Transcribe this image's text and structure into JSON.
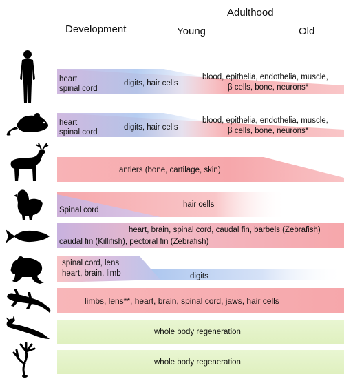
{
  "header": {
    "adulthood": "Adulthood",
    "development": "Development",
    "young": "Young",
    "old": "Old"
  },
  "rows": {
    "human": {
      "icon": "human-silhouette",
      "dev_line1": "heart",
      "dev_line2": "spinal cord",
      "mid": "digits, hair cells",
      "adult_line1": "blood, epithelia, endothelia, muscle,",
      "adult_line2": "β cells, bone, neurons*"
    },
    "mouse": {
      "icon": "mouse-silhouette",
      "dev_line1": "heart",
      "dev_line2": "spinal cord",
      "mid": "digits, hair cells",
      "adult_line1": "blood, epithelia, endothelia, muscle,",
      "adult_line2": "β cells, bone, neurons*"
    },
    "deer": {
      "icon": "deer-silhouette",
      "adult": "antlers (bone, cartilage, skin)"
    },
    "chicken": {
      "icon": "chicken-silhouette",
      "dev": "Spinal cord",
      "adult": "hair cells"
    },
    "fish": {
      "icon": "fish-silhouette",
      "line1": "heart, brain, spinal cord, caudal fin, barbels (Zebrafish)",
      "line2": "caudal fin (Killifish), pectoral fin (Zebrafish)"
    },
    "frog": {
      "icon": "frog-silhouette",
      "dev_line1": "spinal cord, lens",
      "dev_line2": "heart, brain, limb",
      "adult": "digits"
    },
    "salamander": {
      "icon": "salamander-silhouette",
      "text": "limbs, lens**, heart, brain, spinal cord, jaws, hair cells"
    },
    "planarian": {
      "icon": "planarian-silhouette",
      "text": "whole body regeneration"
    },
    "hydra": {
      "icon": "hydra-silhouette",
      "text": "whole body regeneration"
    }
  },
  "colors": {
    "red_band": "#f6a7ab",
    "blue_band": "#a9c4ee",
    "purple_band": "#c8b2df",
    "green_band": "#e4f3c6",
    "silhouette": "#000000"
  }
}
